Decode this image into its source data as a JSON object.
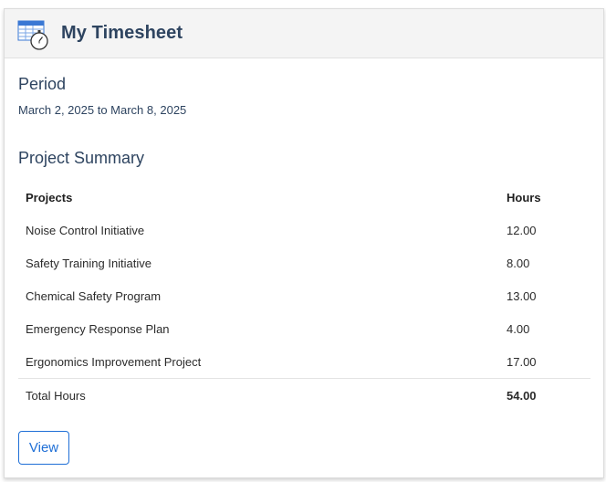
{
  "header": {
    "icon": "timesheet-stopwatch-icon",
    "title": "My Timesheet"
  },
  "period": {
    "label": "Period",
    "value": "March 2, 2025 to March 8, 2025"
  },
  "project_summary": {
    "label": "Project Summary",
    "columns": {
      "project": "Projects",
      "hours": "Hours"
    },
    "rows": [
      {
        "project": "Noise Control Initiative",
        "hours": "12.00"
      },
      {
        "project": "Safety Training Initiative",
        "hours": "8.00"
      },
      {
        "project": "Chemical Safety Program",
        "hours": "13.00"
      },
      {
        "project": "Emergency Response Plan",
        "hours": "4.00"
      },
      {
        "project": "Ergonomics Improvement Project",
        "hours": "17.00"
      }
    ],
    "total": {
      "label": "Total Hours",
      "value": "54.00"
    }
  },
  "actions": {
    "view_label": "View"
  },
  "colors": {
    "accent": "#1f6fd6",
    "heading": "#2e4460",
    "header_bg": "#f4f4f4"
  }
}
